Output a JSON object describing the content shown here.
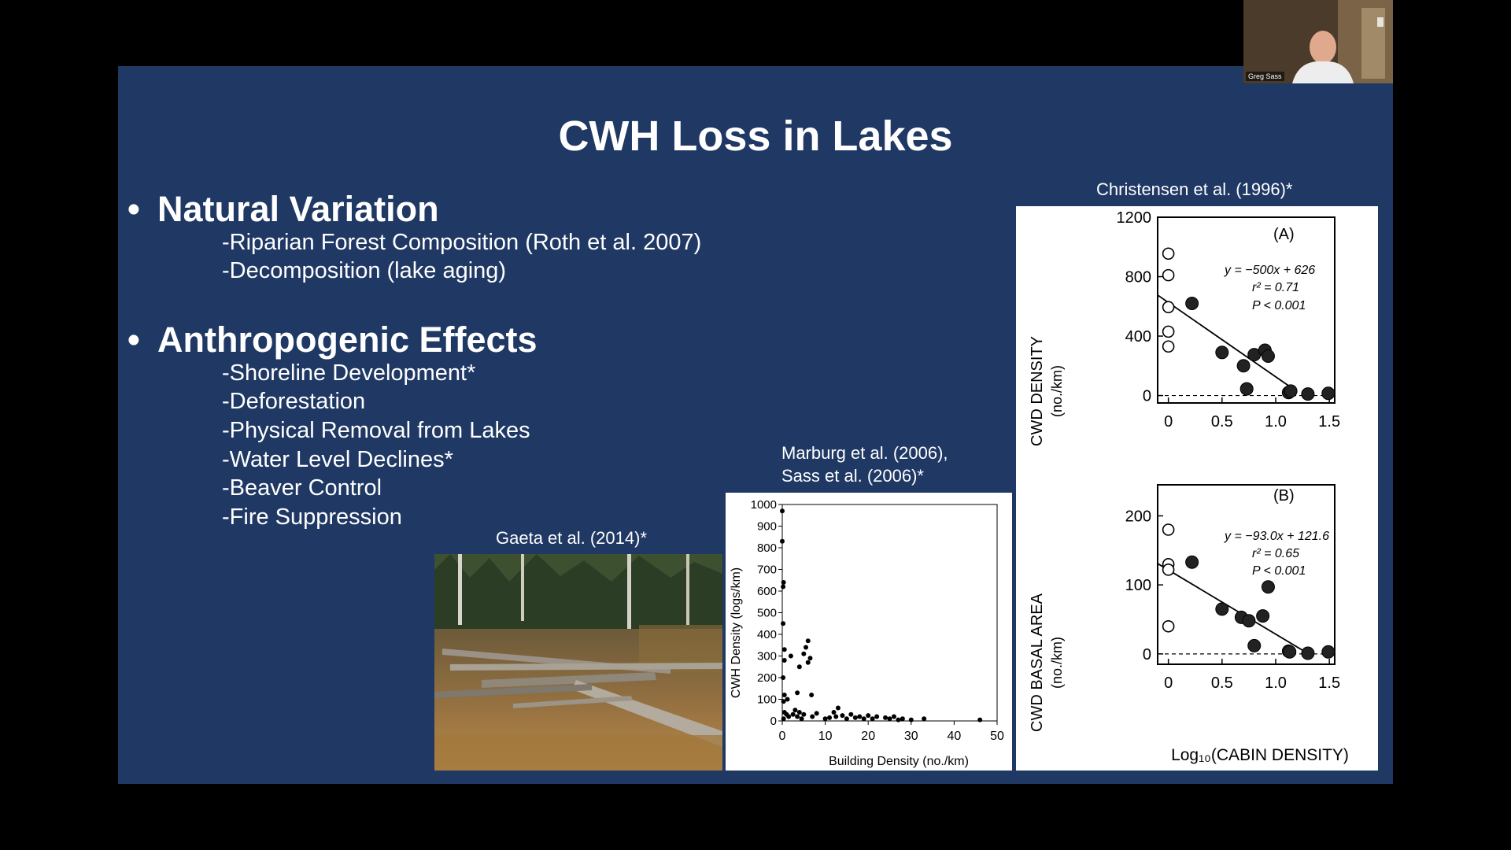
{
  "webcam": {
    "name": "Greg Sass"
  },
  "slide": {
    "title": "CWH Loss in Lakes",
    "bullets": [
      {
        "text": "Natural Variation",
        "items": [
          "-Riparian Forest Composition (Roth et al. 2007)",
          "-Decomposition (lake aging)"
        ]
      },
      {
        "text": "Anthropogenic Effects",
        "items": [
          "-Shoreline Development*",
          "-Deforestation",
          "-Physical Removal from Lakes",
          "-Water Level Declines*",
          "-Beaver Control",
          "-Fire Suppression"
        ]
      }
    ],
    "bullet_symbol": "•",
    "captions": {
      "photo": "Gaeta et al. (2014)*",
      "marburg_line1": "Marburg et al. (2006),",
      "marburg_line2": "Sass et al. (2006)*",
      "christensen": "Christensen et al. (1996)*"
    }
  },
  "chart_data": [
    {
      "type": "scatter",
      "title": "",
      "xlabel": "Building Density (no./km)",
      "ylabel": "CWH Density (logs/km)",
      "xlim": [
        0,
        50
      ],
      "ylim": [
        0,
        1000
      ],
      "xticks": [
        "0",
        "10",
        "20",
        "30",
        "40",
        "50"
      ],
      "yticks": [
        "0",
        "100",
        "200",
        "300",
        "400",
        "500",
        "600",
        "700",
        "800",
        "900",
        "1000"
      ],
      "points": [
        [
          0,
          970
        ],
        [
          0,
          830
        ],
        [
          0.3,
          640
        ],
        [
          0.2,
          620
        ],
        [
          0.2,
          450
        ],
        [
          0.5,
          330
        ],
        [
          0.5,
          280
        ],
        [
          0.2,
          200
        ],
        [
          0.5,
          120
        ],
        [
          1.2,
          100
        ],
        [
          0.3,
          90
        ],
        [
          0.5,
          40
        ],
        [
          1,
          30
        ],
        [
          1.5,
          20
        ],
        [
          0.3,
          10
        ],
        [
          2,
          300
        ],
        [
          4,
          250
        ],
        [
          3.5,
          130
        ],
        [
          5,
          310
        ],
        [
          5.5,
          340
        ],
        [
          6,
          370
        ],
        [
          6,
          270
        ],
        [
          6.5,
          290
        ],
        [
          6.8,
          120
        ],
        [
          2.5,
          30
        ],
        [
          3,
          50
        ],
        [
          3.5,
          20
        ],
        [
          4,
          40
        ],
        [
          4.5,
          10
        ],
        [
          5,
          30
        ],
        [
          7,
          20
        ],
        [
          8,
          35
        ],
        [
          10,
          10
        ],
        [
          11,
          15
        ],
        [
          12,
          40
        ],
        [
          12.5,
          20
        ],
        [
          13,
          60
        ],
        [
          14,
          25
        ],
        [
          15,
          10
        ],
        [
          16,
          30
        ],
        [
          17,
          15
        ],
        [
          18,
          20
        ],
        [
          19,
          10
        ],
        [
          20,
          25
        ],
        [
          21,
          10
        ],
        [
          22,
          20
        ],
        [
          24,
          15
        ],
        [
          25,
          10
        ],
        [
          26,
          20
        ],
        [
          27,
          5
        ],
        [
          28,
          10
        ],
        [
          30,
          5
        ],
        [
          33,
          10
        ],
        [
          46,
          5
        ]
      ]
    },
    {
      "type": "scatter",
      "title": "",
      "panel_label": "(A)",
      "xlabel": "",
      "ylabel_line1": "CWD DENSITY",
      "ylabel_line2": "(no./km)",
      "xlim": [
        -0.1,
        1.55
      ],
      "ylim": [
        -50,
        1200
      ],
      "xticks": [
        "0",
        "0.5",
        "1.0",
        "1.5"
      ],
      "yticks": [
        "1200",
        "800",
        "400",
        "0"
      ],
      "equation": "y = −500x + 626",
      "r2": "r² = 0.71",
      "p": "P < 0.001",
      "fit": {
        "slope": -500,
        "intercept": 626,
        "x_range": [
          -0.1,
          1.2
        ]
      },
      "series": [
        {
          "filled": false,
          "points": [
            [
              0,
              955
            ],
            [
              0,
              810
            ],
            [
              0,
              595
            ],
            [
              0,
              430
            ],
            [
              0,
              330
            ]
          ]
        },
        {
          "filled": true,
          "points": [
            [
              0.22,
              620
            ],
            [
              0.5,
              290
            ],
            [
              0.7,
              200
            ],
            [
              0.73,
              45
            ],
            [
              0.8,
              275
            ],
            [
              0.9,
              305
            ],
            [
              0.93,
              265
            ],
            [
              1.12,
              20
            ],
            [
              1.14,
              30
            ],
            [
              1.3,
              10
            ],
            [
              1.49,
              15
            ]
          ]
        }
      ]
    },
    {
      "type": "scatter",
      "title": "",
      "panel_label": "(B)",
      "xlabel": "Log₁₀(CABIN DENSITY)",
      "ylabel_line1": "CWD BASAL AREA",
      "ylabel_line2": "(no./km)",
      "xlim": [
        -0.1,
        1.55
      ],
      "ylim": [
        -15,
        245
      ],
      "xticks": [
        "0",
        "0.5",
        "1.0",
        "1.5"
      ],
      "yticks": [
        "200",
        "100",
        "0"
      ],
      "equation": "y = −93.0x + 121.6",
      "r2": "r² = 0.65",
      "p": "P < 0.001",
      "fit": {
        "slope": -93.0,
        "intercept": 121.6,
        "x_range": [
          -0.1,
          1.28
        ]
      },
      "series": [
        {
          "filled": false,
          "points": [
            [
              0,
              180
            ],
            [
              0,
              130
            ],
            [
              0,
              122
            ],
            [
              0,
              40
            ]
          ]
        },
        {
          "filled": true,
          "points": [
            [
              0.22,
              133
            ],
            [
              0.5,
              65
            ],
            [
              0.68,
              53
            ],
            [
              0.75,
              48
            ],
            [
              0.8,
              12
            ],
            [
              0.88,
              55
            ],
            [
              0.93,
              97
            ],
            [
              1.12,
              4
            ],
            [
              1.13,
              3
            ],
            [
              1.3,
              1
            ],
            [
              1.49,
              3
            ]
          ]
        }
      ]
    }
  ]
}
